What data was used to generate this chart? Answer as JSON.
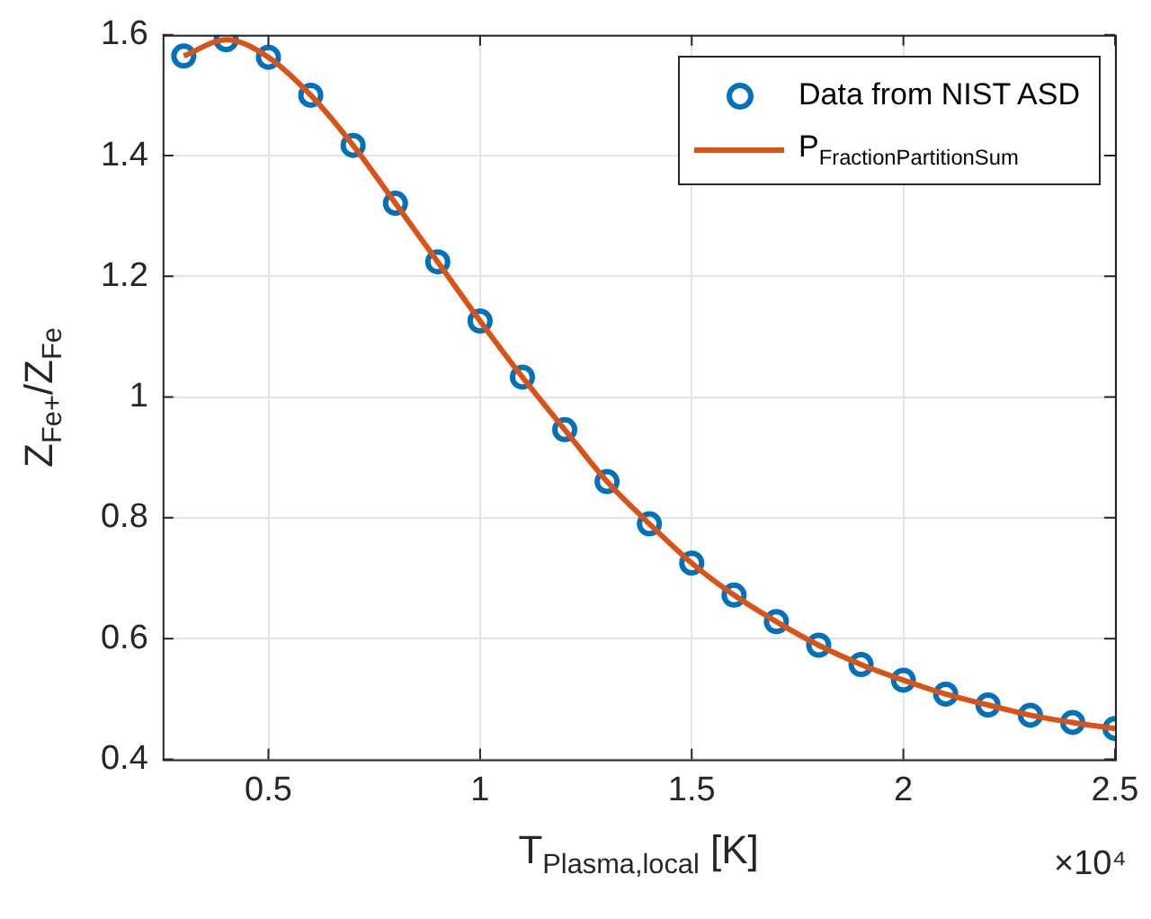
{
  "chart_data": {
    "type": "line",
    "xlabel": "T$_{Plasma,local}$ [K]",
    "ylabel": "Z$_{Fe+}$/Z$_{Fe}$",
    "x": [
      0.3,
      0.4,
      0.5,
      0.6,
      0.7,
      0.8,
      0.9,
      1.0,
      1.1,
      1.2,
      1.3,
      1.4,
      1.5,
      1.6,
      1.7,
      1.8,
      1.9,
      2.0,
      2.1,
      2.2,
      2.3,
      2.4,
      2.5
    ],
    "series": [
      {
        "name": "Data from NIST ASD",
        "type": "scatter",
        "marker": "circle",
        "color": "#0072bd",
        "values": [
          1.565,
          1.592,
          1.563,
          1.5,
          1.417,
          1.321,
          1.224,
          1.126,
          1.033,
          0.946,
          0.86,
          0.79,
          0.725,
          0.672,
          0.628,
          0.589,
          0.557,
          0.531,
          0.508,
          0.49,
          0.473,
          0.461,
          0.451
        ]
      },
      {
        "name": "P$_{FractionPartitionSum}$",
        "line_style": "solid",
        "color": "#d95319",
        "values": [
          1.565,
          1.592,
          1.563,
          1.5,
          1.417,
          1.321,
          1.224,
          1.126,
          1.033,
          0.946,
          0.86,
          0.79,
          0.725,
          0.672,
          0.628,
          0.589,
          0.557,
          0.531,
          0.508,
          0.49,
          0.473,
          0.461,
          0.451
        ]
      }
    ],
    "xlim": [
      0.25,
      2.5
    ],
    "xticks": [
      0.5,
      1,
      1.5,
      2,
      2.5
    ],
    "ylim": [
      0.4,
      1.6
    ],
    "yticks": [
      0.4,
      0.6,
      0.8,
      1,
      1.2,
      1.4,
      1.6
    ],
    "grid": true,
    "legend": "top right",
    "annotations": [
      "×10⁴"
    ]
  }
}
